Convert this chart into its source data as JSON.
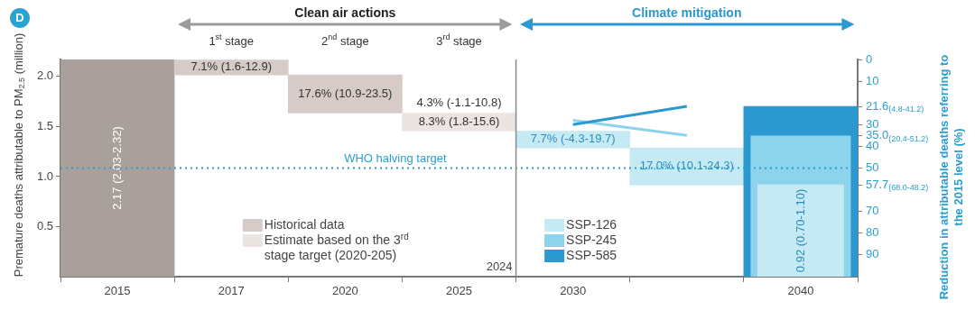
{
  "chart_data": {
    "type": "bar",
    "categories": [
      "2015",
      "2017",
      "2020",
      "2025",
      "2030",
      null,
      "2040"
    ],
    "ylabel": "Premature deaths attributable to PM$_{2.5}$ (million)",
    "y2label": "Reduction in attributable deaths referring to the 2015 level (%)",
    "ylim": [
      0,
      2.17
    ],
    "yticks": [
      0.5,
      {
        "value": 1,
        "label": "1.0"
      },
      1.5,
      {
        "value": 2,
        "label": "2.0"
      }
    ],
    "y2lim": [
      100,
      0
    ],
    "y2ticks": [
      0,
      10,
      {
        "value": 21.6,
        "label": "21.6$_{(4.8-41.2)}$"
      },
      30,
      {
        "value": 35,
        "label": "35.0$_{(20.4-51.2)}$"
      },
      40,
      50,
      {
        "value": 57.7,
        "label": "57.7$_{(68.0-48.2)}$"
      },
      70,
      80,
      90
    ],
    "grid": false,
    "legend": "bottom",
    "series": [
      {
        "color": "#a9a09c",
        "values": [
          2.17,
          null,
          null,
          null,
          null,
          null,
          null
        ],
        "base": [
          0,
          null,
          null,
          null,
          null,
          null,
          null
        ],
        "value_labels": [
          "2.17 (2.03-2.32)",
          null,
          null,
          null,
          null,
          null,
          null
        ]
      },
      {
        "name": "Historical data",
        "axis": "y2",
        "color": "#d6cbc6",
        "values": [
          null,
          7.1,
          17.6,
          null,
          null,
          null,
          null
        ],
        "base": [
          null,
          0,
          7.1,
          null,
          null,
          null,
          null
        ],
        "value_labels": [
          null,
          "7.1% (1.6-12.9)",
          "17.6% (10.9-23.5)",
          null,
          null,
          null,
          null
        ]
      },
      {
        "name": "Estimate based on the 3$^{rd}$ stage target (2020-205)",
        "axis": "y2",
        "color": "#ebe4e1",
        "values": [
          null,
          null,
          null,
          8.3,
          null,
          null,
          null
        ],
        "base": [
          null,
          null,
          null,
          24.7,
          null,
          null,
          null
        ],
        "value_labels": [
          null,
          null,
          null,
          "8.3% (1.8-15.6)",
          null,
          null,
          null
        ]
      },
      {
        "name": "SSP-126",
        "axis": "y2",
        "color": "#c6eaf3",
        "values": [
          null,
          null,
          null,
          null,
          7.7,
          17.0,
          null
        ],
        "base": [
          null,
          null,
          null,
          null,
          33.0,
          40.7,
          null
        ],
        "value_labels": [
          null,
          null,
          null,
          null,
          "7.7% (-4.3-19.7)",
          "17.0% (10.1-24.3)",
          null
        ]
      },
      {
        "name": "SSP-245",
        "type": "line",
        "axis": "y2",
        "color": "#8dd3eb",
        "values": [
          null,
          null,
          null,
          null,
          28,
          35,
          null
        ]
      },
      {
        "name": "SSP-585",
        "type": "line",
        "axis": "y2",
        "color": "#2b98cf",
        "values": [
          null,
          null,
          null,
          null,
          30,
          21.6,
          null
        ]
      },
      {
        "color": "#2b98cf",
        "values": [
          null,
          null,
          null,
          null,
          null,
          null,
          1.7
        ],
        "base": [
          null,
          null,
          null,
          null,
          null,
          null,
          0
        ]
      },
      {
        "color": "#8dd3eb",
        "values": [
          null,
          null,
          null,
          null,
          null,
          null,
          1.41
        ],
        "base": [
          null,
          null,
          null,
          null,
          null,
          null,
          0
        ]
      },
      {
        "color": "#c6eaf3",
        "values": [
          null,
          null,
          null,
          null,
          null,
          null,
          0.92
        ],
        "base": [
          null,
          null,
          null,
          null,
          null,
          null,
          0
        ],
        "value_labels": [
          null,
          null,
          null,
          null,
          null,
          null,
          "0.92 (0.70-1.10)"
        ]
      }
    ],
    "ref_lines": [
      {
        "axis": "y2",
        "value": 50,
        "label": "WHO halving target",
        "color": "#2a9fd0",
        "line_style": "dotted"
      },
      {
        "axis": "x",
        "value": "2025",
        "label": "2024",
        "color": "#8a8a8a"
      }
    ],
    "annotations": [
      "D",
      "Clean air actions",
      "Climate mitigation",
      "1$^{st}$ stage",
      "2$^{nd}$ stage",
      "3$^{rd}$ stage",
      "4.3% (-1.1-10.8)"
    ]
  }
}
